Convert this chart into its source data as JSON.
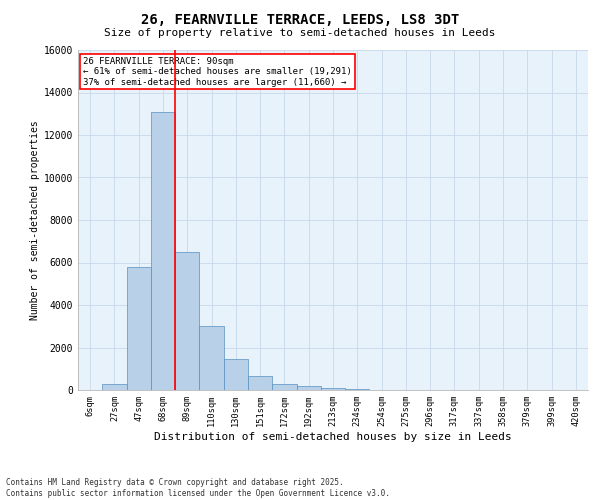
{
  "title_line1": "26, FEARNVILLE TERRACE, LEEDS, LS8 3DT",
  "title_line2": "Size of property relative to semi-detached houses in Leeds",
  "xlabel": "Distribution of semi-detached houses by size in Leeds",
  "ylabel": "Number of semi-detached properties",
  "categories": [
    "6sqm",
    "27sqm",
    "47sqm",
    "68sqm",
    "89sqm",
    "110sqm",
    "130sqm",
    "151sqm",
    "172sqm",
    "192sqm",
    "213sqm",
    "234sqm",
    "254sqm",
    "275sqm",
    "296sqm",
    "317sqm",
    "337sqm",
    "358sqm",
    "379sqm",
    "399sqm",
    "420sqm"
  ],
  "values": [
    0,
    300,
    5800,
    13100,
    6500,
    3000,
    1450,
    680,
    300,
    170,
    100,
    30,
    10,
    0,
    0,
    0,
    0,
    0,
    0,
    0,
    0
  ],
  "bar_color": "#b8d0e8",
  "bar_edge_color": "#5590c0",
  "vline_color": "red",
  "annotation_title": "26 FEARNVILLE TERRACE: 90sqm",
  "annotation_line1": "← 61% of semi-detached houses are smaller (19,291)",
  "annotation_line2": "37% of semi-detached houses are larger (11,660) →",
  "ylim": [
    0,
    16000
  ],
  "yticks": [
    0,
    2000,
    4000,
    6000,
    8000,
    10000,
    12000,
    14000,
    16000
  ],
  "grid_color": "#c8d8ea",
  "background_color": "#e8f2fa",
  "footer_line1": "Contains HM Land Registry data © Crown copyright and database right 2025.",
  "footer_line2": "Contains public sector information licensed under the Open Government Licence v3.0."
}
